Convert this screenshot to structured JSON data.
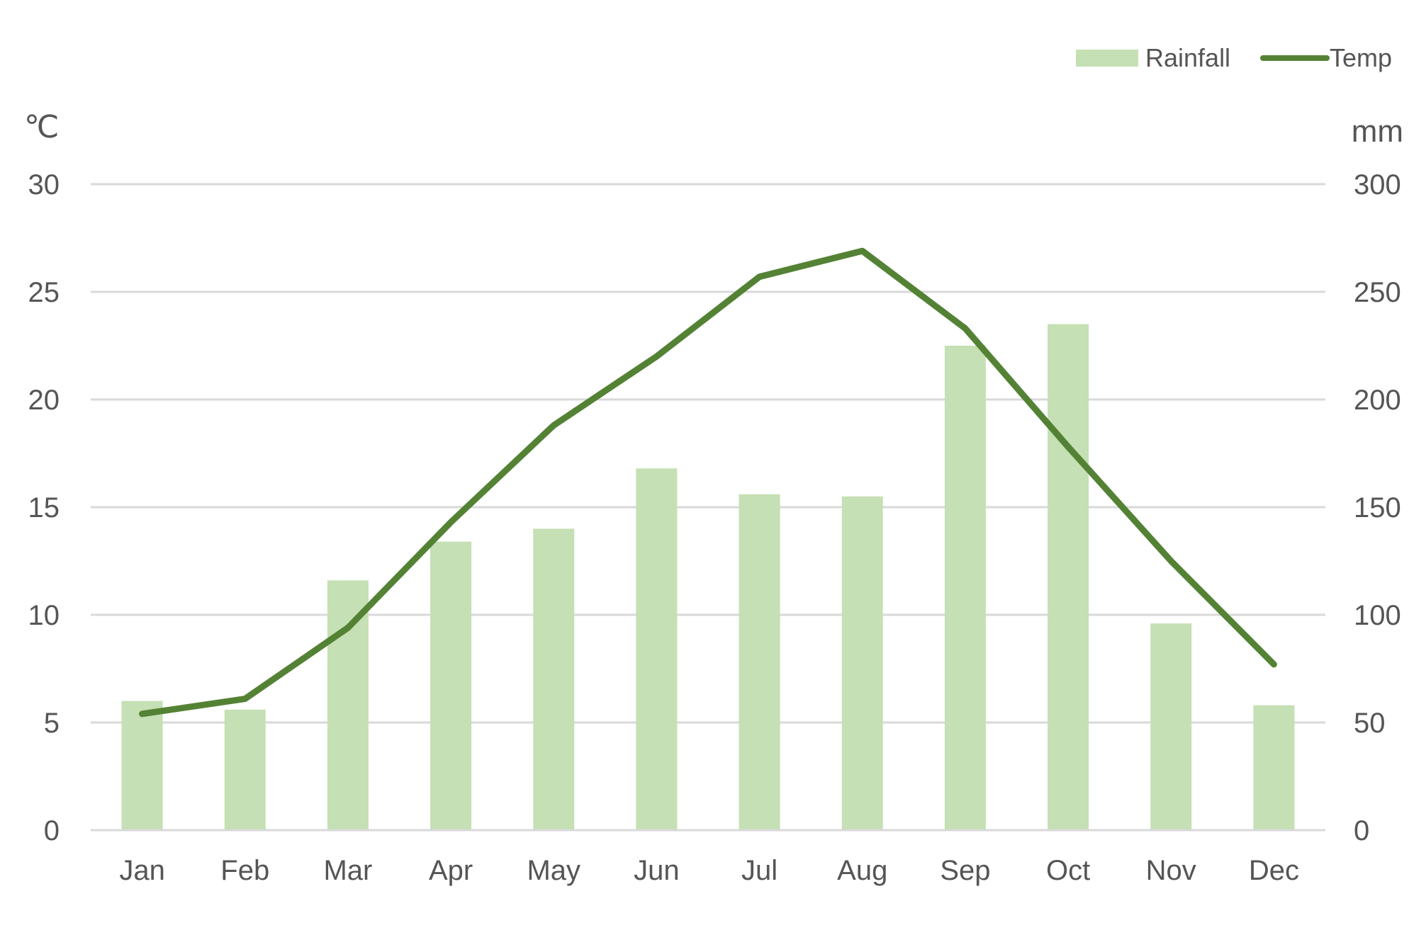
{
  "chart_data": {
    "type": "bar",
    "categories": [
      "Jan",
      "Feb",
      "Mar",
      "Apr",
      "May",
      "Jun",
      "Jul",
      "Aug",
      "Sep",
      "Oct",
      "Nov",
      "Dec"
    ],
    "series": [
      {
        "name": "Rainfall",
        "type": "bar",
        "axis": "right",
        "values": [
          60,
          56,
          116,
          134,
          140,
          168,
          156,
          155,
          225,
          235,
          96,
          58
        ],
        "color": "#c5e0b4"
      },
      {
        "name": "Temp",
        "type": "line",
        "axis": "left",
        "values": [
          5.4,
          6.1,
          9.4,
          14.3,
          18.8,
          22.0,
          25.7,
          26.9,
          23.3,
          17.8,
          12.5,
          7.7
        ],
        "color": "#548235"
      }
    ],
    "y_left": {
      "unit": "℃",
      "ylim": [
        0,
        30
      ],
      "ticks": [
        "0",
        "5",
        "10",
        "15",
        "20",
        "25",
        "30"
      ]
    },
    "y_right": {
      "unit": "mm",
      "ylim": [
        0,
        300
      ],
      "ticks": [
        "0",
        "50",
        "100",
        "150",
        "200",
        "250",
        "300"
      ]
    },
    "grid": true,
    "legend_position": "top-right",
    "title": "",
    "xlabel": ""
  }
}
